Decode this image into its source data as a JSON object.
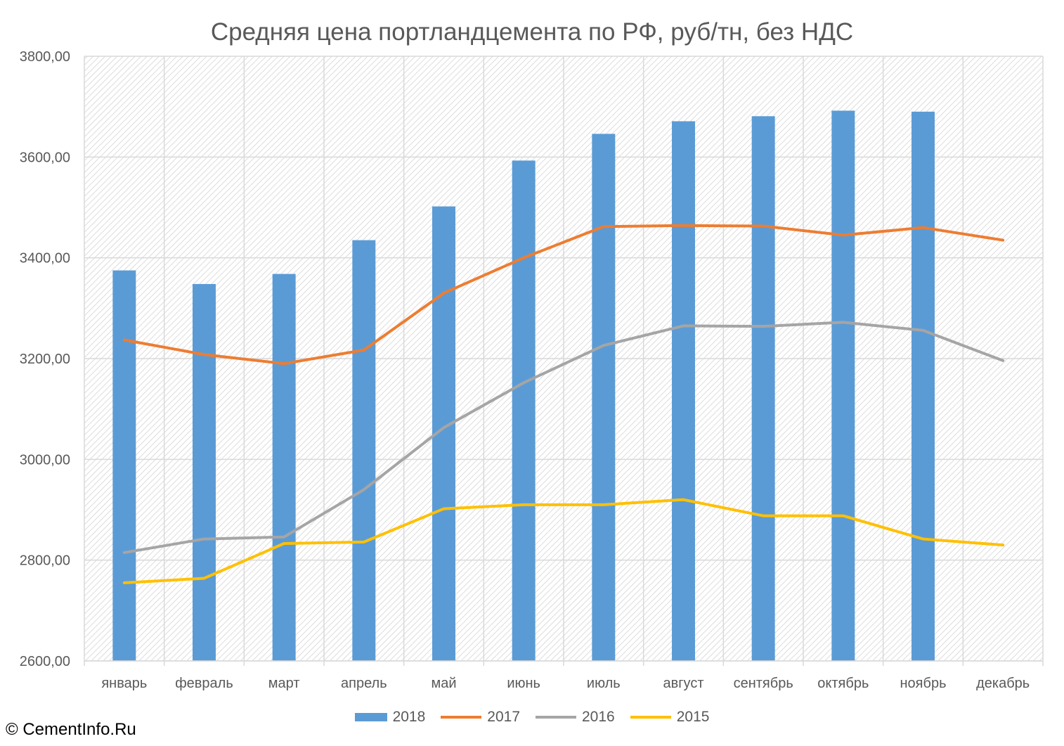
{
  "chart_data": {
    "type": "bar+line",
    "title": "Средняя цена портландцемента по РФ, руб/тн, без НДС",
    "categories": [
      "январь",
      "февраль",
      "март",
      "апрель",
      "май",
      "июнь",
      "июль",
      "август",
      "сентябрь",
      "октябрь",
      "ноябрь",
      "декабрь"
    ],
    "y_ticks": [
      "2600,00",
      "2800,00",
      "3000,00",
      "3200,00",
      "3400,00",
      "3600,00",
      "3800,00"
    ],
    "ylim": [
      2600,
      3800
    ],
    "grid": true,
    "legend_position": "bottom",
    "series": [
      {
        "name": "2018",
        "type": "bar",
        "color": "#5b9bd5",
        "values": [
          3375,
          3348,
          3368,
          3435,
          3502,
          3593,
          3646,
          3671,
          3681,
          3692,
          3690,
          null
        ]
      },
      {
        "name": "2017",
        "type": "line",
        "color": "#ed7d31",
        "values": [
          3237,
          3208,
          3190,
          3217,
          3330,
          3400,
          3462,
          3464,
          3463,
          3445,
          3460,
          3435
        ]
      },
      {
        "name": "2016",
        "type": "line",
        "color": "#a5a5a5",
        "values": [
          2815,
          2842,
          2846,
          2940,
          3063,
          3152,
          3226,
          3265,
          3264,
          3272,
          3256,
          3196
        ]
      },
      {
        "name": "2015",
        "type": "line",
        "color": "#ffc000",
        "values": [
          2755,
          2764,
          2833,
          2836,
          2902,
          2910,
          2910,
          2920,
          2888,
          2888,
          2842,
          2830
        ]
      }
    ]
  },
  "copyright": "© CementInfo.Ru"
}
